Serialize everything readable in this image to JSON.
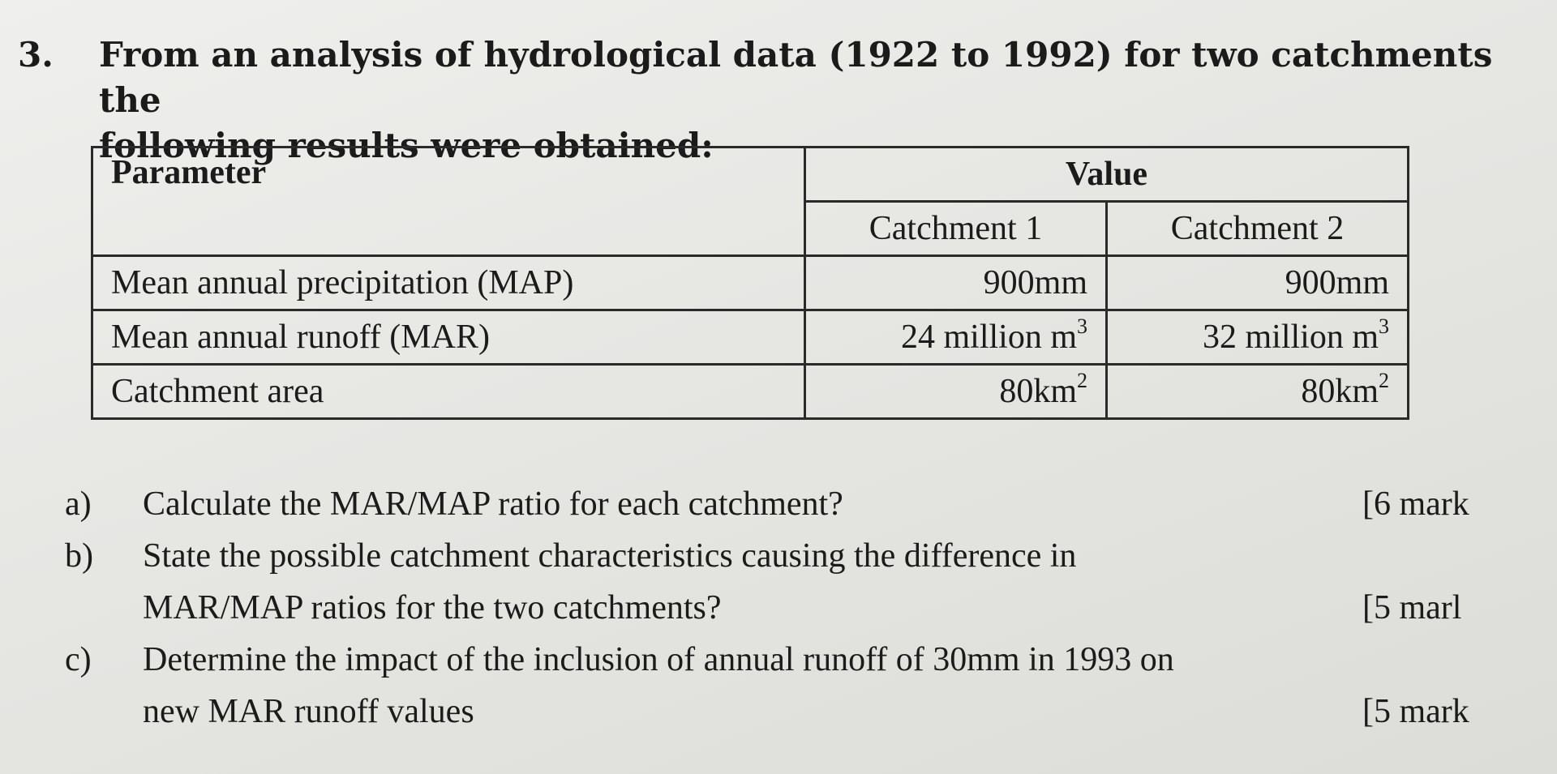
{
  "question": {
    "number": "3.",
    "intro_line1": "From an analysis of hydrological data (1922 to 1992) for two catchments the",
    "intro_line2": "following results were obtained:"
  },
  "table": {
    "header_parameter": "Parameter",
    "header_value": "Value",
    "sub_catchment1": "Catchment 1",
    "sub_catchment2": "Catchment 2",
    "rows": [
      {
        "label": "Mean annual precipitation (MAP)",
        "c1": "900mm",
        "c1_sup": "",
        "c2": "900mm",
        "c2_sup": ""
      },
      {
        "label": "Mean annual runoff (MAR)",
        "c1": "24 million m",
        "c1_sup": "3",
        "c2": "32 million m",
        "c2_sup": "3"
      },
      {
        "label": "Catchment area",
        "c1": "80km",
        "c1_sup": "2",
        "c2": "80km",
        "c2_sup": "2"
      }
    ]
  },
  "subquestions": [
    {
      "letter": "a)",
      "lines": [
        "Calculate the MAR/MAP ratio for each catchment?"
      ],
      "marks": "[6 mark"
    },
    {
      "letter": "b)",
      "lines": [
        "State the possible catchment characteristics causing the difference in",
        "MAR/MAP ratios for the two catchments?"
      ],
      "marks": "[5 marl"
    },
    {
      "letter": "c)",
      "lines": [
        "Determine the impact of the inclusion of annual runoff of 30mm in 1993 on",
        "new MAR runoff values"
      ],
      "marks": "[5 mark"
    }
  ]
}
